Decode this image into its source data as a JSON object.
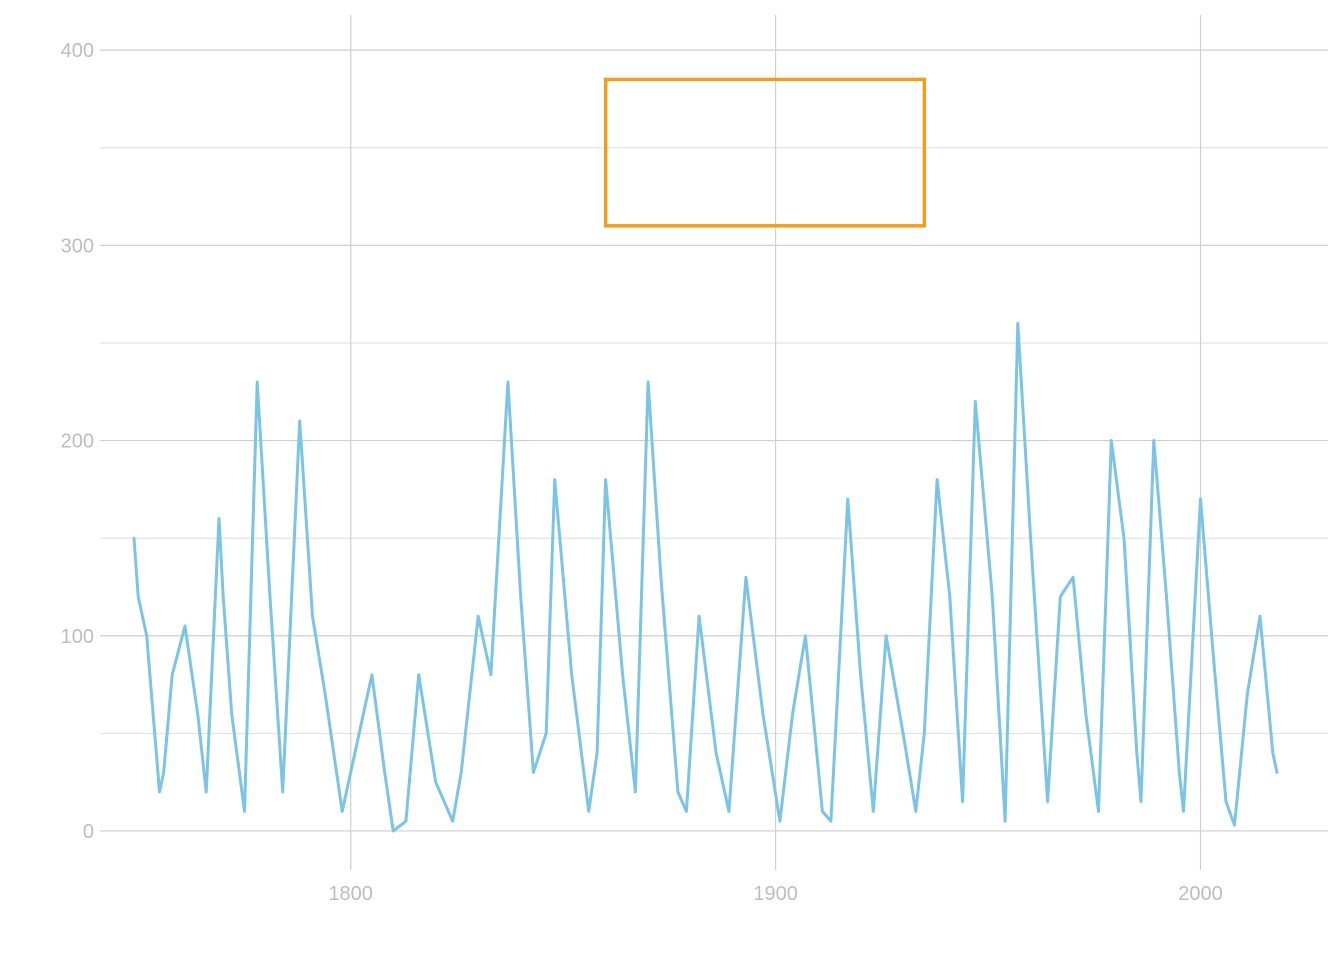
{
  "chart_data": {
    "type": "line",
    "title": "",
    "xlabel": "",
    "ylabel": "",
    "xlim": [
      1741,
      2030
    ],
    "ylim": [
      -20,
      418
    ],
    "x_ticks": [
      1800,
      1900,
      2000
    ],
    "y_ticks": [
      0,
      100,
      200,
      300,
      400
    ],
    "x_tick_labels": [
      "1800",
      "1900",
      "2000"
    ],
    "y_tick_labels": [
      "0",
      "100",
      "200",
      "300",
      "400"
    ],
    "grid": true,
    "legend": "none",
    "colors": {
      "series": "#7bc4e5",
      "annotation": "#f39c1f",
      "grid": "#cfcfcf",
      "ticks": "#bdbdbd"
    },
    "series": [
      {
        "x": [
          1749,
          1750,
          1752,
          1755,
          1756,
          1758,
          1761,
          1764,
          1766,
          1769,
          1770,
          1772,
          1775,
          1778,
          1781,
          1784,
          1788,
          1791,
          1794,
          1798,
          1801,
          1805,
          1808,
          1810,
          1813,
          1816,
          1820,
          1824,
          1826,
          1830,
          1833,
          1837,
          1840,
          1843,
          1846,
          1848,
          1852,
          1856,
          1858,
          1860,
          1864,
          1867,
          1870,
          1873,
          1877,
          1879,
          1882,
          1886,
          1889,
          1893,
          1897,
          1901,
          1904,
          1907,
          1911,
          1913,
          1917,
          1920,
          1923,
          1926,
          1930,
          1933,
          1935,
          1938,
          1941,
          1944,
          1947,
          1951,
          1954,
          1957,
          1960,
          1964,
          1967,
          1970,
          1973,
          1976,
          1979,
          1982,
          1985,
          1986,
          1989,
          1992,
          1995,
          1996,
          2000,
          2003,
          2006,
          2008,
          2011,
          2014,
          2017,
          2018
        ],
        "y": [
          150,
          120,
          100,
          20,
          30,
          80,
          105,
          60,
          20,
          160,
          120,
          60,
          10,
          230,
          120,
          20,
          210,
          110,
          70,
          10,
          40,
          80,
          30,
          0,
          5,
          80,
          25,
          5,
          30,
          110,
          80,
          230,
          120,
          30,
          50,
          180,
          80,
          10,
          40,
          180,
          80,
          20,
          230,
          130,
          20,
          10,
          110,
          40,
          10,
          130,
          60,
          5,
          60,
          100,
          10,
          5,
          170,
          80,
          10,
          100,
          50,
          10,
          50,
          180,
          120,
          15,
          220,
          120,
          5,
          260,
          150,
          15,
          120,
          130,
          60,
          10,
          200,
          150,
          40,
          15,
          200,
          120,
          30,
          10,
          170,
          90,
          15,
          3,
          70,
          110,
          40,
          30
        ]
      }
    ],
    "annotation_box": {
      "x": [
        1860,
        1935
      ],
      "y": [
        310,
        385
      ]
    }
  }
}
